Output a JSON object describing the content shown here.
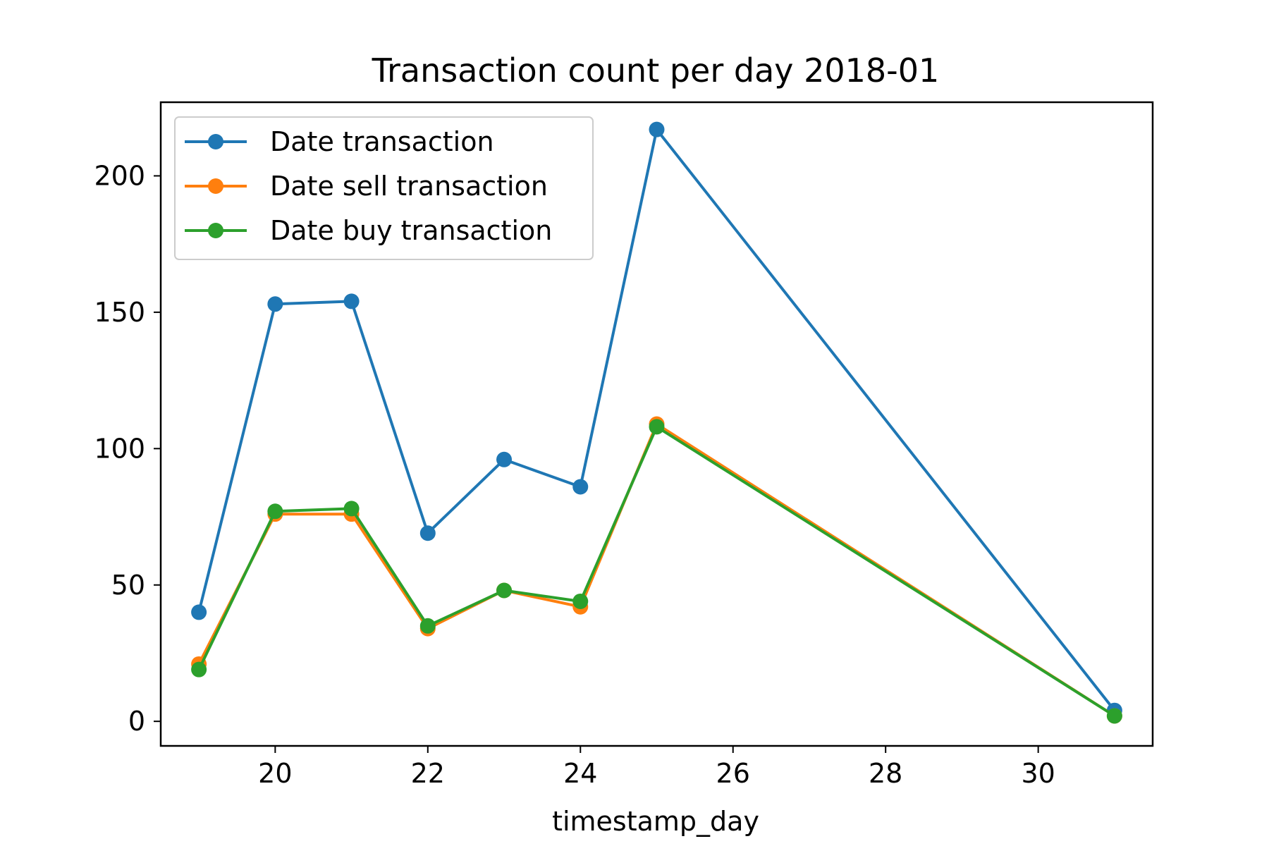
{
  "chart_data": {
    "type": "line",
    "title": "Transaction count per day 2018-01",
    "xlabel": "timestamp_day",
    "ylabel": "",
    "xlim": [
      18.5,
      31.5
    ],
    "ylim": [
      -9,
      227
    ],
    "x": [
      19,
      20,
      21,
      22,
      23,
      24,
      25,
      31
    ],
    "xticks": [
      20,
      22,
      24,
      26,
      28,
      30
    ],
    "yticks": [
      0,
      50,
      100,
      150,
      200
    ],
    "grid": false,
    "legend_position": "upper-left",
    "series": [
      {
        "name": "Date transaction",
        "color": "#1f77b4",
        "values": [
          40,
          153,
          154,
          69,
          96,
          86,
          217,
          4
        ]
      },
      {
        "name": "Date sell transaction",
        "color": "#ff7f0e",
        "values": [
          21,
          76,
          76,
          34,
          48,
          42,
          109,
          2
        ]
      },
      {
        "name": "Date buy transaction",
        "color": "#2ca02c",
        "values": [
          19,
          77,
          78,
          35,
          48,
          44,
          108,
          2
        ]
      }
    ]
  }
}
